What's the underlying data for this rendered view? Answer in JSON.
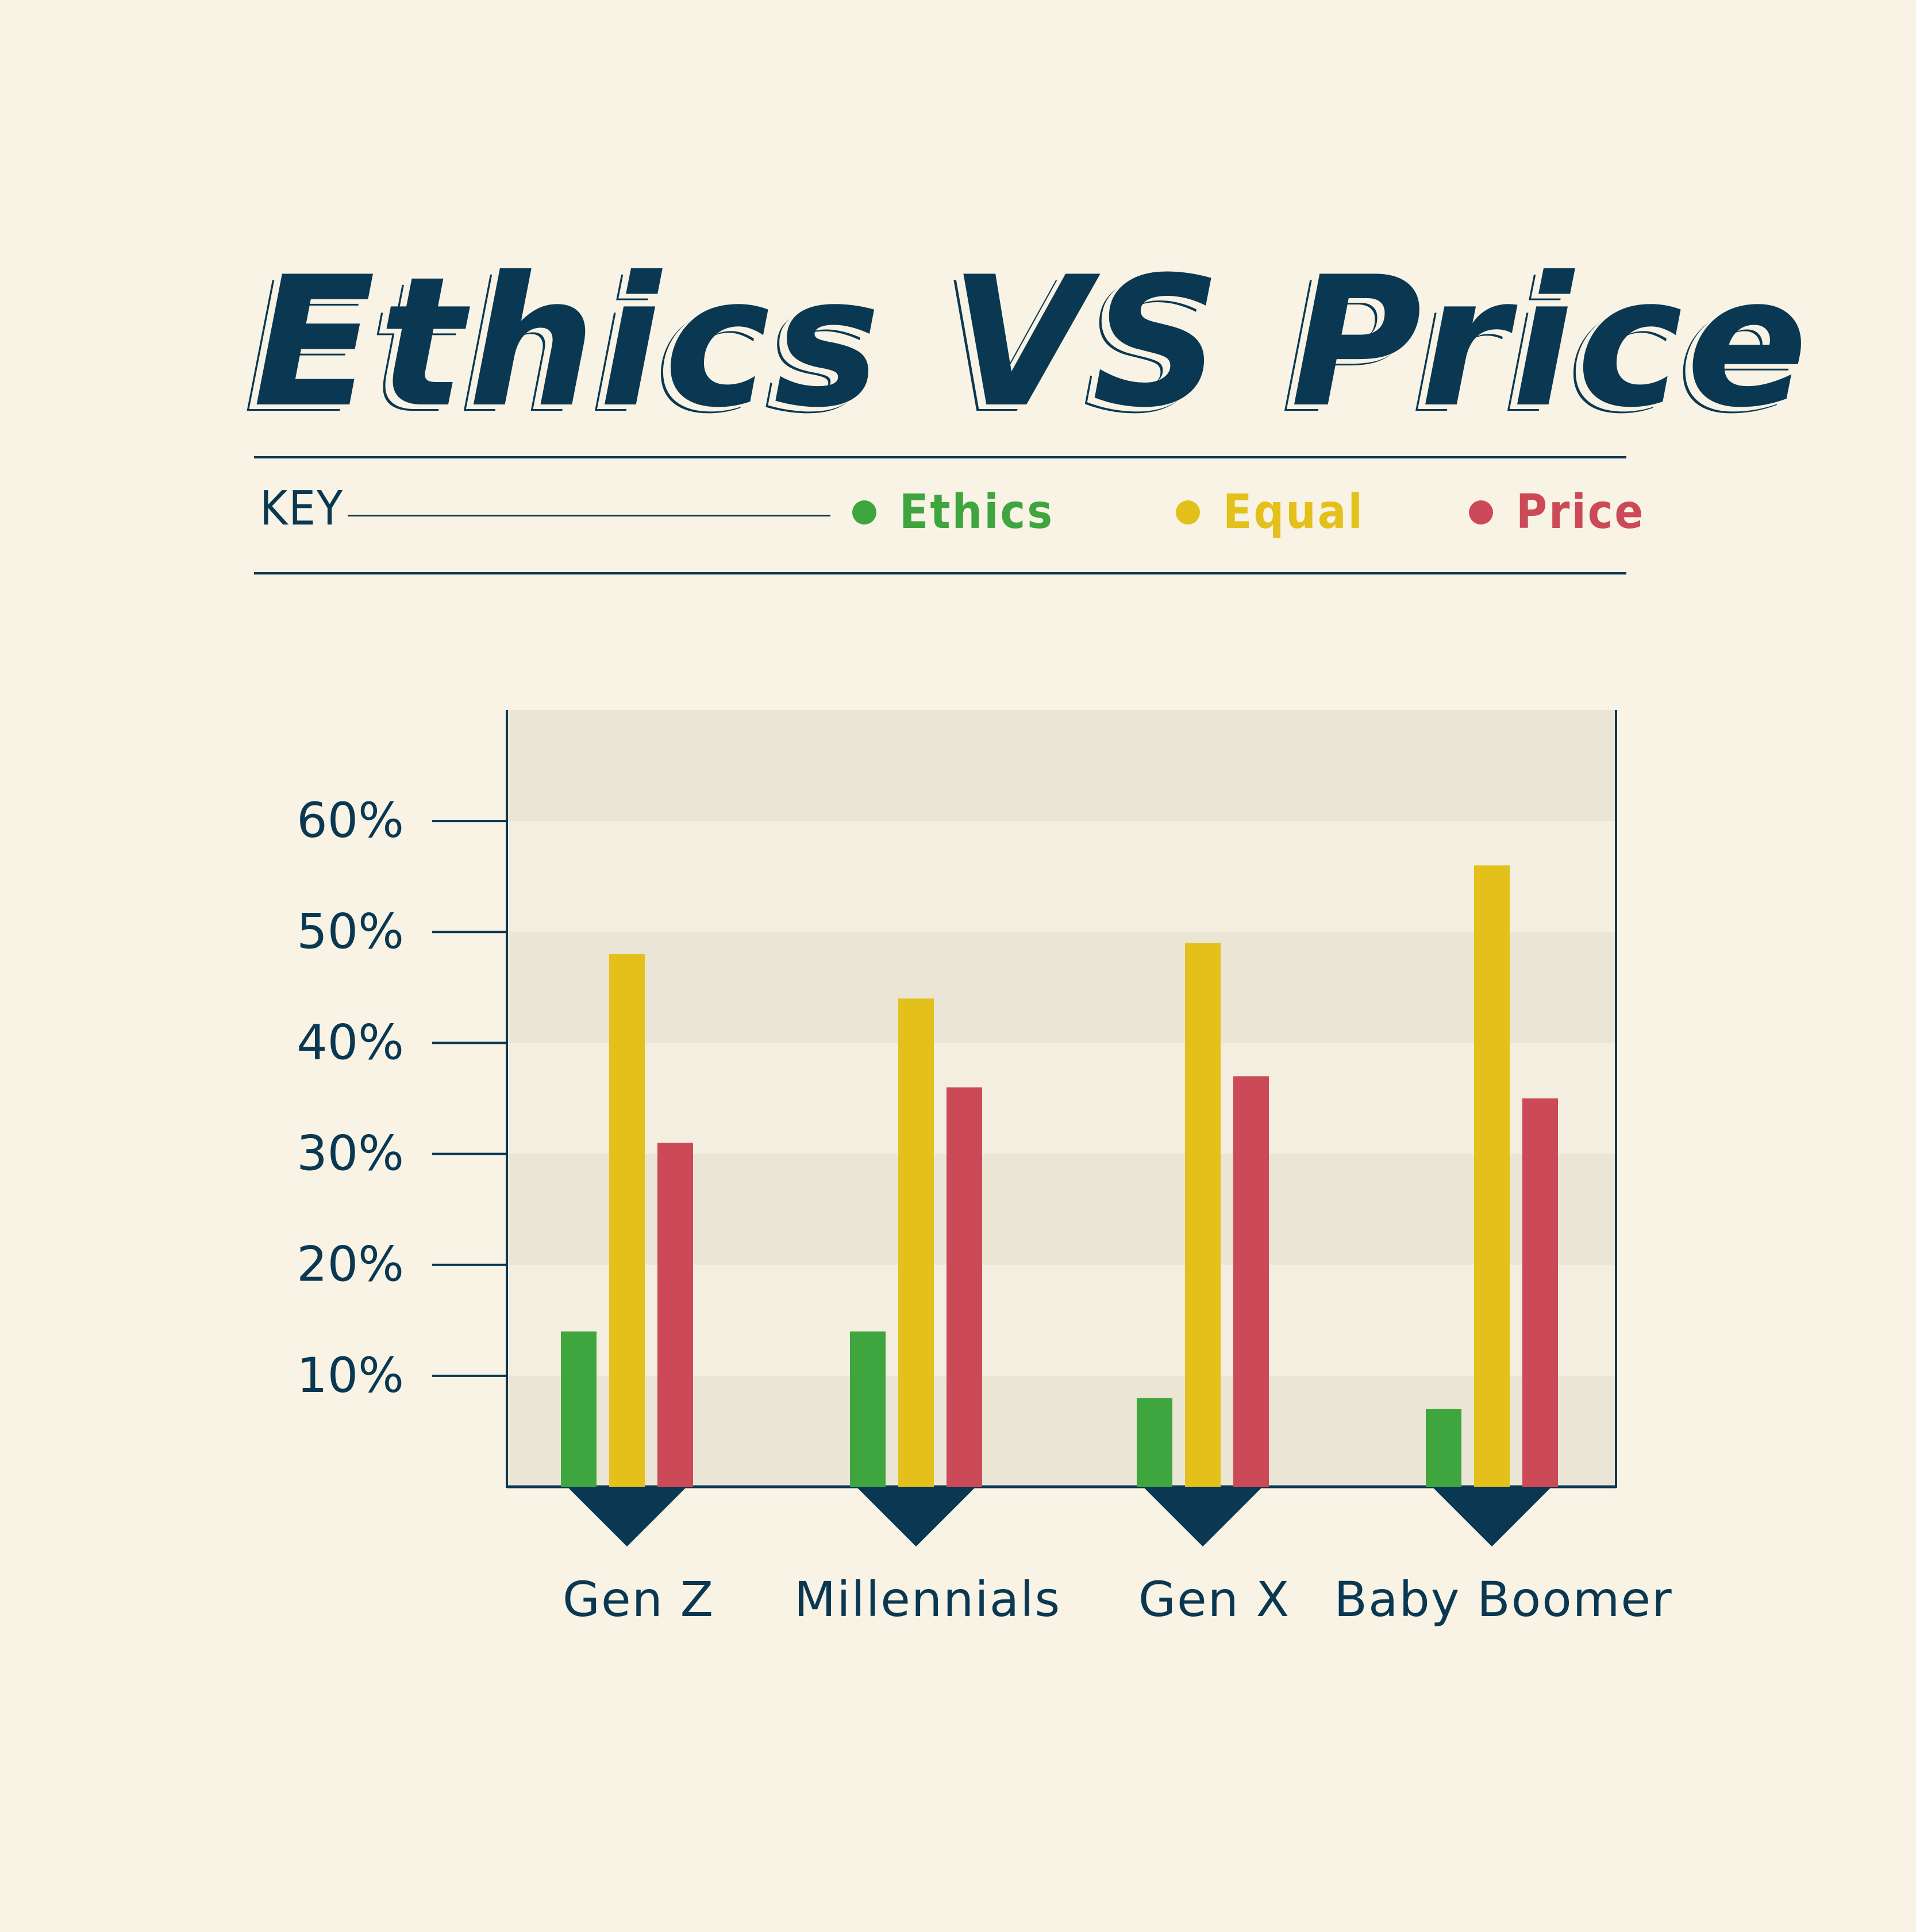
{
  "title": "Ethics VS Price",
  "key_label": "KEY",
  "colors": {
    "background": "#f8f3e4",
    "navy": "#0a3852",
    "ethics": "#3ea53f",
    "equal": "#e3c11a",
    "price": "#cc4a57",
    "band_dark": "#ebe5d5",
    "band_light": "#f3eedf"
  },
  "chart_data": {
    "type": "bar",
    "categories": [
      "Gen Z",
      "Millennials",
      "Gen X",
      "Baby Boomer"
    ],
    "series": [
      {
        "name": "Ethics",
        "color": "#3ea53f",
        "values": [
          14,
          14,
          8,
          7
        ]
      },
      {
        "name": "Equal",
        "color": "#e3c11a",
        "values": [
          48,
          44,
          49,
          56
        ]
      },
      {
        "name": "Price",
        "color": "#cc4a57",
        "values": [
          31,
          36,
          37,
          35
        ]
      }
    ],
    "yticks": [
      10,
      20,
      30,
      40,
      50,
      60
    ],
    "ytick_labels": [
      "10%",
      "20%",
      "30%",
      "40%",
      "50%",
      "60%"
    ],
    "ylim": [
      0,
      70
    ],
    "legend": "top"
  }
}
